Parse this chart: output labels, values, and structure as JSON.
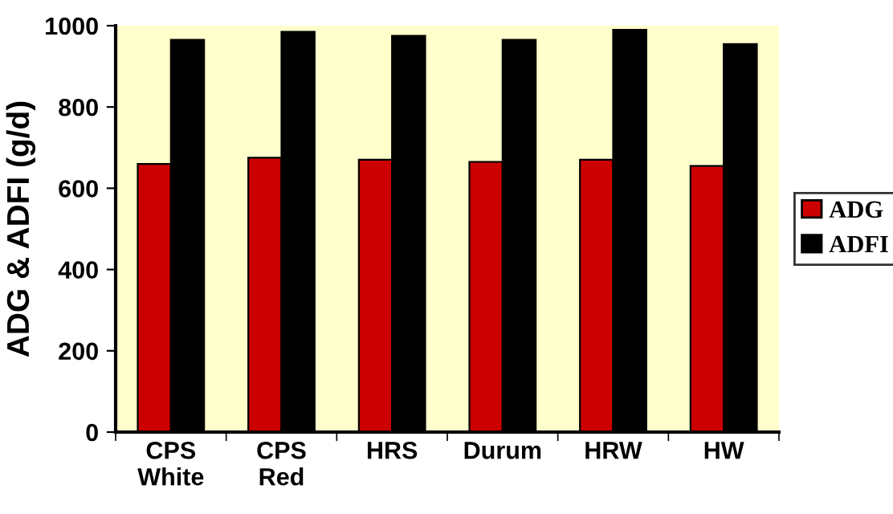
{
  "chart_data": {
    "type": "bar",
    "ylabel": "ADG & ADFI (g/d)",
    "categories": [
      "CPS\nWhite",
      "CPS\nRed",
      "HRS",
      "Durum",
      "HRW",
      "HW"
    ],
    "series": [
      {
        "name": "ADG",
        "color": "#cc0000",
        "values": [
          660,
          675,
          670,
          665,
          670,
          655
        ]
      },
      {
        "name": "ADFI",
        "color": "#000000",
        "values": [
          965,
          985,
          975,
          965,
          990,
          955
        ]
      }
    ],
    "ylim": [
      0,
      1000
    ],
    "yticks": [
      0,
      200,
      400,
      600,
      800,
      1000
    ],
    "grid": false,
    "legend": "right"
  }
}
